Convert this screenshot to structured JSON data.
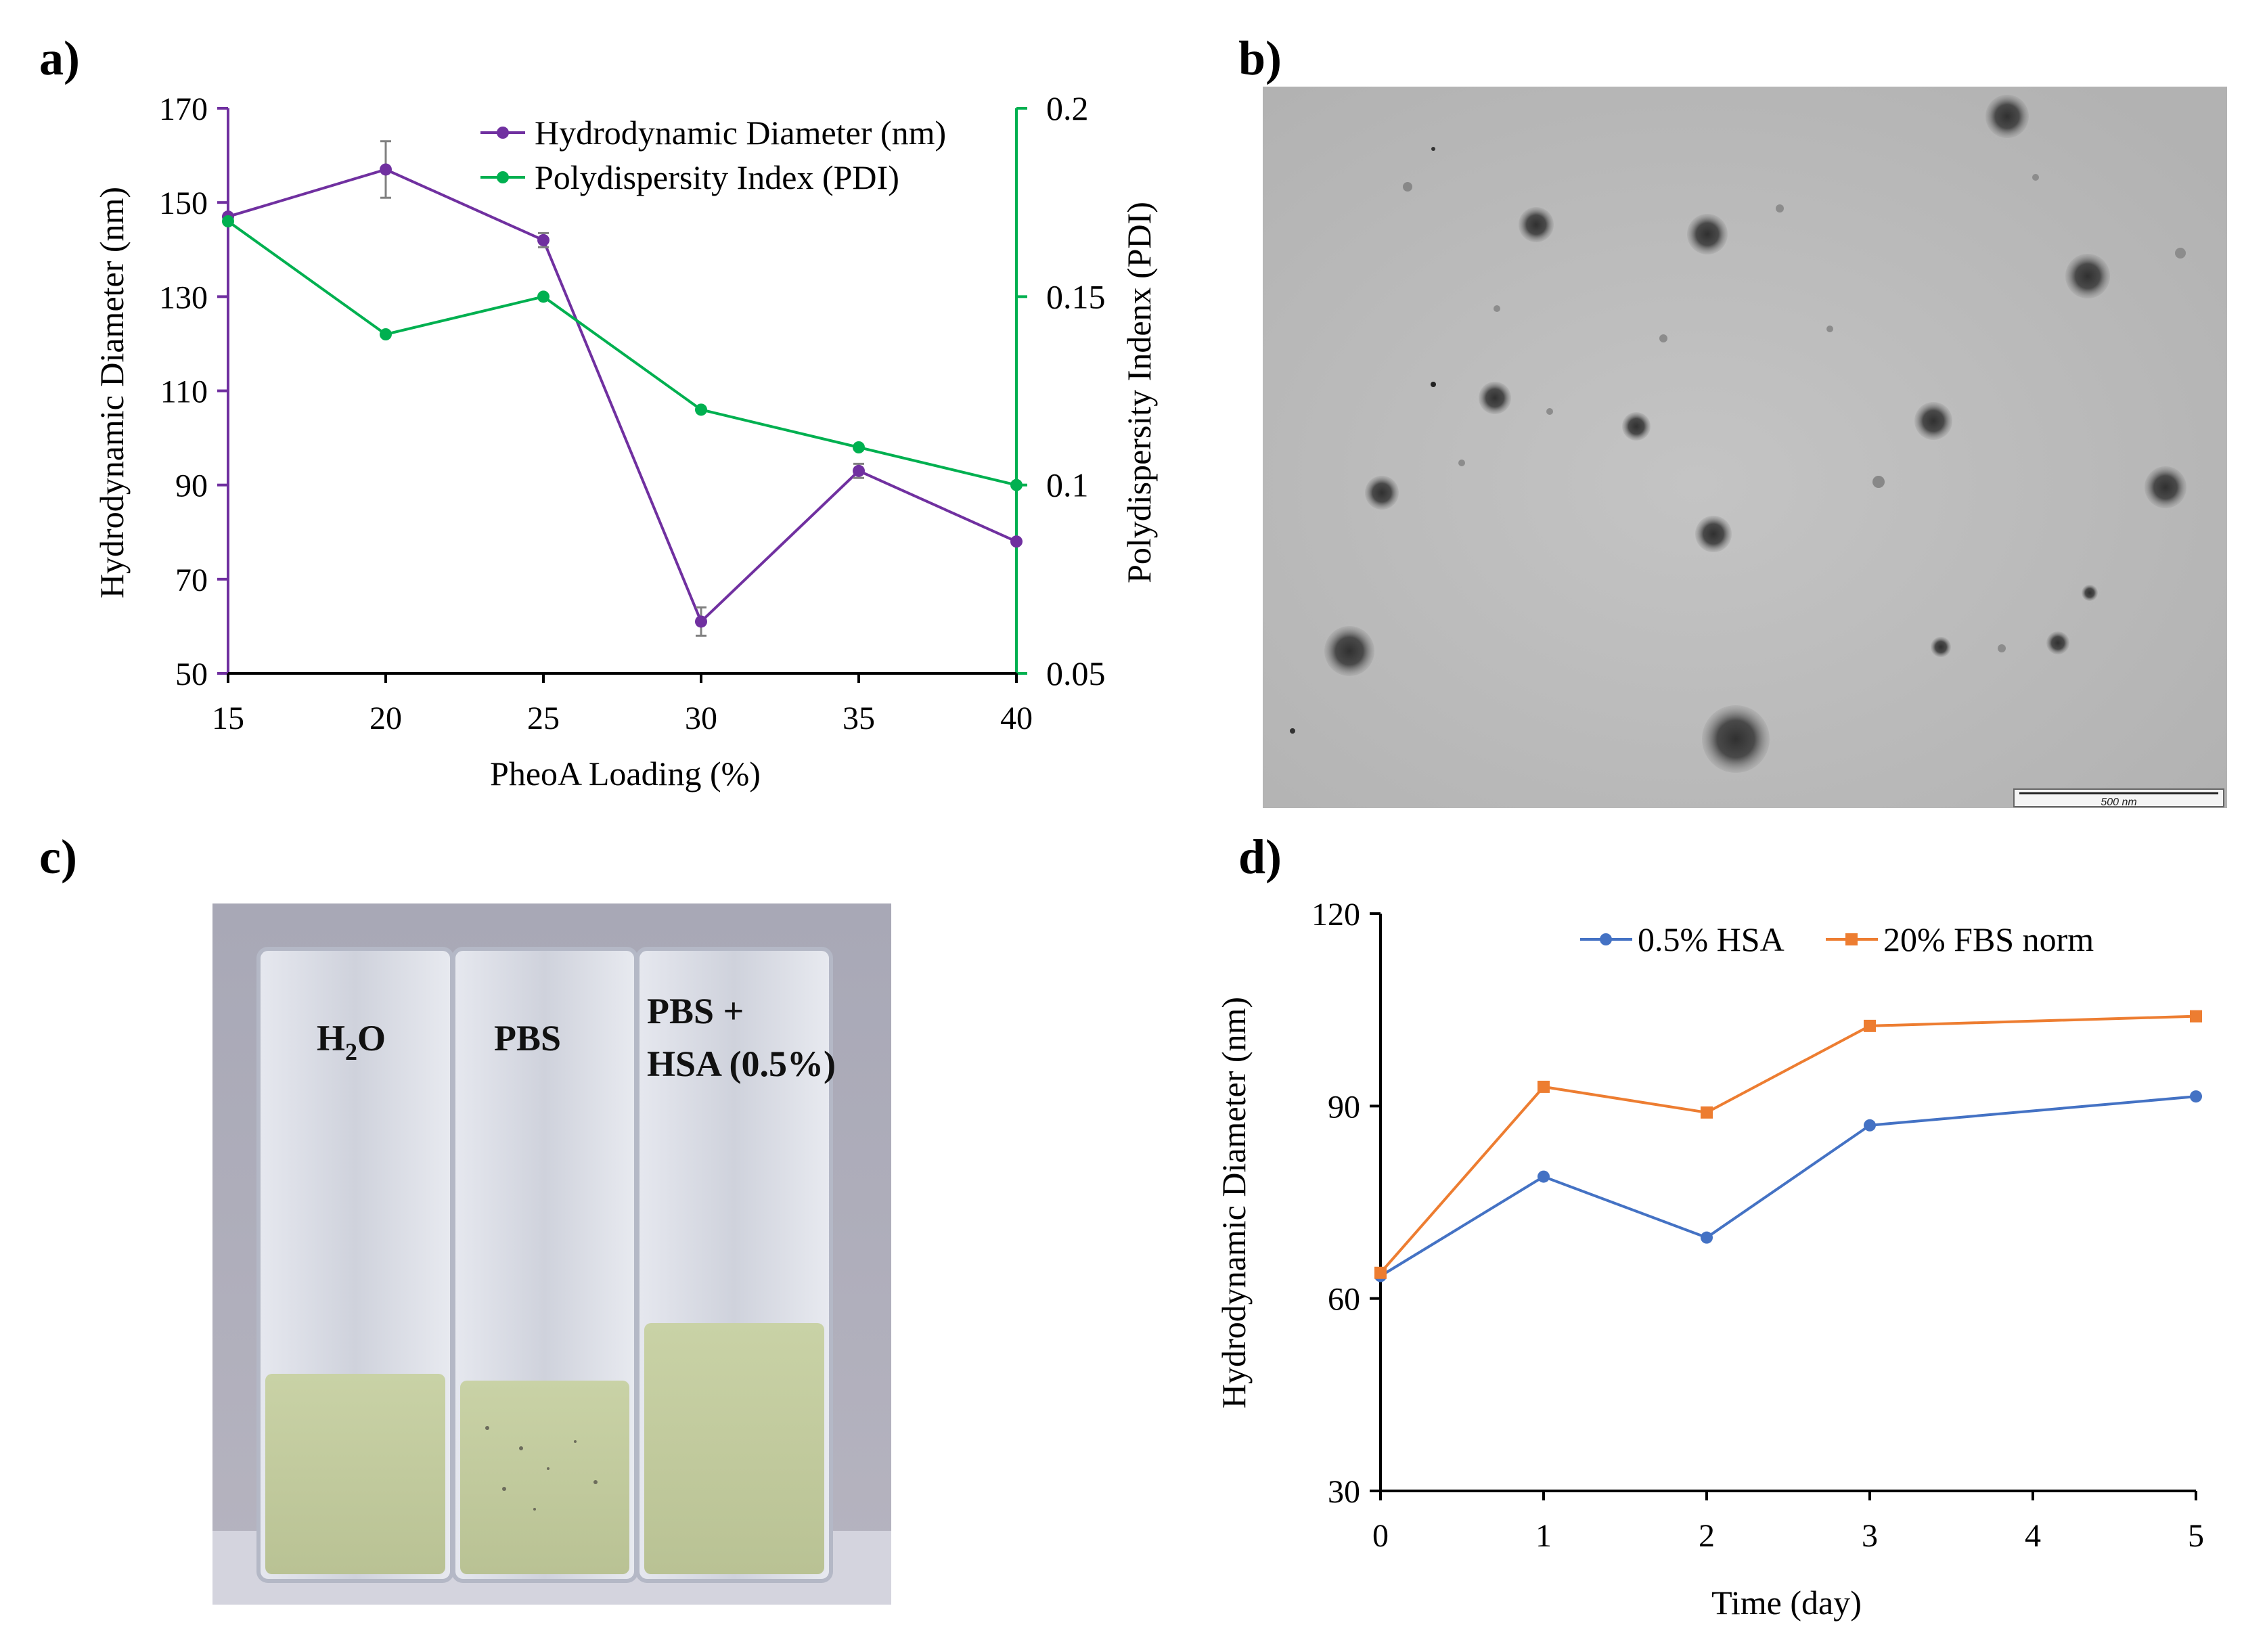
{
  "panels": {
    "a": "a)",
    "b": "b)",
    "c": "c)",
    "d": "d)"
  },
  "colors": {
    "purple": "#7030A0",
    "green": "#00B050",
    "blue": "#4472C4",
    "orange": "#ED7D31",
    "axis": "#000000",
    "errorbar": "#808080"
  },
  "chart_data": [
    {
      "id": "a",
      "type": "line",
      "title": "",
      "xlabel": "PheoA Loading (%)",
      "ylabel": "Hydrodynamic Diameter (nm)",
      "y2label": "Polydispersity Indenx (PDI)",
      "x": [
        15,
        20,
        25,
        30,
        35,
        40
      ],
      "xlim": [
        15,
        40
      ],
      "ylim": [
        50,
        170
      ],
      "y2lim": [
        0.05,
        0.2
      ],
      "x_ticks": [
        "15",
        "20",
        "25",
        "30",
        "35",
        "40"
      ],
      "y_ticks": [
        "50",
        "70",
        "90",
        "110",
        "130",
        "150",
        "170"
      ],
      "y2_ticks": [
        "0.05",
        "0.1",
        "0.15",
        "0.2"
      ],
      "legend_position": "top-right",
      "series": [
        {
          "name": "Hydrodynamic Diameter (nm)",
          "axis": "left",
          "color": "#7030A0",
          "values": [
            147,
            157,
            142,
            61,
            93,
            78
          ],
          "errors": [
            0,
            6,
            1.5,
            3,
            1.5,
            0
          ]
        },
        {
          "name": "Polydispersity Index (PDI)",
          "axis": "right",
          "color": "#00B050",
          "values": [
            0.17,
            0.14,
            0.15,
            0.12,
            0.11,
            0.1
          ]
        }
      ]
    },
    {
      "id": "d",
      "type": "line",
      "title": "",
      "xlabel": "Time (day)",
      "ylabel": "Hydrodynamic Diameter (nm)",
      "x": [
        0,
        1,
        2,
        3,
        5
      ],
      "xlim": [
        0,
        5
      ],
      "ylim": [
        30,
        120
      ],
      "x_ticks": [
        "0",
        "1",
        "2",
        "3",
        "4",
        "5"
      ],
      "y_ticks": [
        "30",
        "60",
        "90",
        "120"
      ],
      "legend_position": "top",
      "series": [
        {
          "name": "0.5% HSA",
          "color": "#4472C4",
          "marker": "circle",
          "values": [
            63.5,
            79,
            69.5,
            87,
            91.5
          ]
        },
        {
          "name": "20% FBS norm",
          "color": "#ED7D31",
          "marker": "square",
          "values": [
            64,
            93,
            89,
            102.5,
            104
          ]
        }
      ]
    }
  ],
  "micrograph": {
    "scale_bar_label": "500 nm"
  },
  "photo": {
    "label_h2o_main": "H",
    "label_h2o_sub": "2",
    "label_h2o_tail": "O",
    "label_pbs": "PBS",
    "label_pbs_hsa_line1": "PBS +",
    "label_pbs_hsa_line2": "HSA (0.5%)"
  }
}
